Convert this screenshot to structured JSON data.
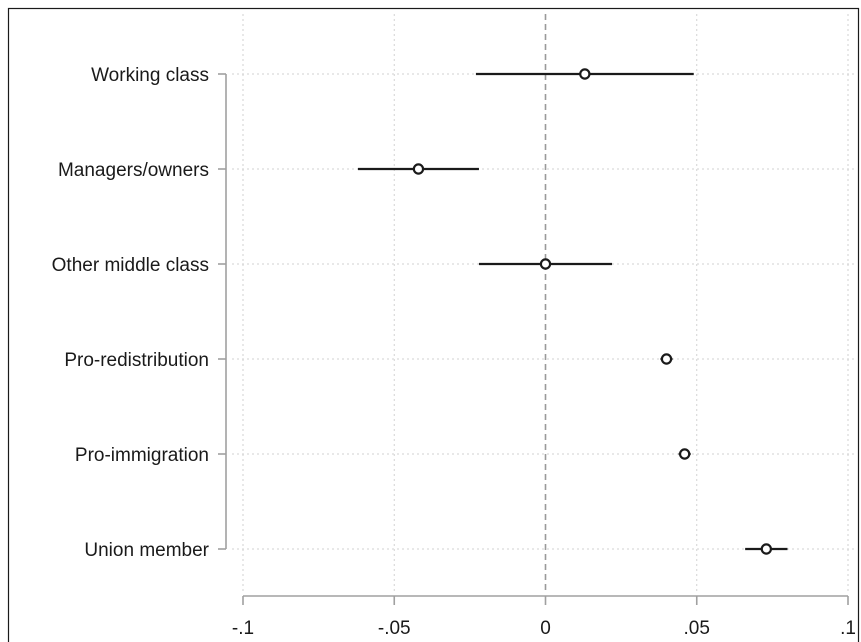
{
  "chart_data": {
    "type": "scatter",
    "subtype": "coefficient-plot",
    "orientation": "horizontal",
    "title": "",
    "xlabel": "",
    "ylabel": "",
    "xlim": [
      -0.1,
      0.1
    ],
    "xticks": [
      -0.1,
      -0.05,
      0,
      0.05,
      0.1
    ],
    "xtick_labels": [
      "-.1",
      "-.05",
      "0",
      ".05",
      ".1"
    ],
    "reference_line": 0,
    "grid": true,
    "legend": "none",
    "colors": {
      "marker": "#1a1a1a",
      "ci": "#1a1a1a",
      "grid": "#d2d2d2",
      "axis": "#a0a0a0",
      "reference": "#9a9a9a"
    },
    "categories": [
      "Working class",
      "Managers/owners",
      "Other middle class",
      "Pro-redistribution",
      "Pro-immigration",
      "Union member"
    ],
    "estimates": [
      {
        "label": "Working class",
        "value": 0.013,
        "ci_low": -0.023,
        "ci_high": 0.049
      },
      {
        "label": "Managers/owners",
        "value": -0.042,
        "ci_low": -0.062,
        "ci_high": -0.022
      },
      {
        "label": "Other middle class",
        "value": 0.0,
        "ci_low": -0.022,
        "ci_high": 0.022
      },
      {
        "label": "Pro-redistribution",
        "value": 0.04,
        "ci_low": 0.038,
        "ci_high": 0.042
      },
      {
        "label": "Pro-immigration",
        "value": 0.046,
        "ci_low": 0.044,
        "ci_high": 0.048
      },
      {
        "label": "Union member",
        "value": 0.073,
        "ci_low": 0.066,
        "ci_high": 0.08
      }
    ]
  }
}
